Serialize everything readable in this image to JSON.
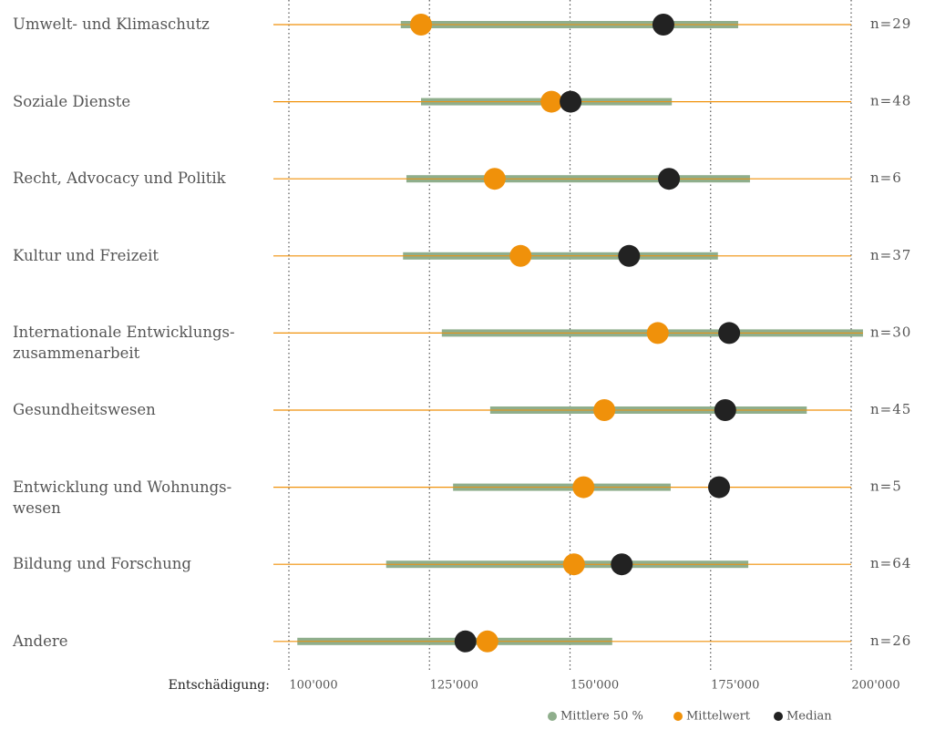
{
  "chart_data": {
    "type": "range",
    "x_label": "Entschädigung:",
    "categories": [
      "Umwelt- und Klimaschutz",
      "Soziale Dienste",
      "Recht, Advocacy und Politik",
      "Kultur und Freizeit",
      "Internationale Entwicklungs-\nzusammenarbeit",
      "Gesundheitswesen",
      "Entwicklung und Wohnungs-\nwesen",
      "Bildung und Forschung",
      "Andere"
    ],
    "n_labels": [
      "n=29",
      "n=48",
      "n=6",
      "n=37",
      "n=30",
      "n=45",
      "n=5",
      "n=64",
      "n=26"
    ],
    "series": [
      {
        "name": "Mittlere 50 %",
        "color": "#8fae8c",
        "low": [
          119900,
          123500,
          120900,
          120300,
          127200,
          135800,
          129200,
          117300,
          101500
        ],
        "high": [
          179900,
          168100,
          182000,
          176300,
          202100,
          192100,
          167900,
          181700,
          157500
        ]
      },
      {
        "name": "Mittelwert",
        "color": "#f0910a",
        "values": [
          123500,
          146700,
          136600,
          141200,
          165600,
          156100,
          152400,
          150700,
          135300
        ]
      },
      {
        "name": "Median",
        "color": "#222222",
        "values": [
          166600,
          150100,
          167600,
          160500,
          178300,
          177600,
          176500,
          159200,
          131400
        ]
      }
    ],
    "line_color": "#f0910a",
    "xlim": [
      100000,
      200000
    ],
    "xticks": [
      {
        "value": 100000,
        "label": "100'000"
      },
      {
        "value": 125000,
        "label": "125'000"
      },
      {
        "value": 150000,
        "label": "150'000"
      },
      {
        "value": 175000,
        "label": "175'000"
      },
      {
        "value": 200000,
        "label": "200'000"
      }
    ],
    "grid": true
  }
}
